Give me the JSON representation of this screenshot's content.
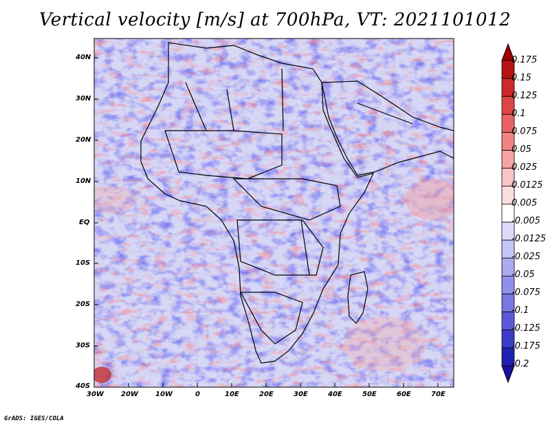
{
  "title": "Vertical velocity [m/s] at 700hPa, VT: 2021101012",
  "credit": "GrADS: IGES/COLA",
  "map": {
    "lon_range": [
      -30,
      75
    ],
    "lat_range": [
      -40,
      45
    ],
    "x_ticks": [
      "30W",
      "20W",
      "10W",
      "0",
      "10E",
      "20E",
      "30E",
      "40E",
      "50E",
      "60E",
      "70E"
    ],
    "y_ticks": [
      "40N",
      "30N",
      "20N",
      "10N",
      "EQ",
      "10S",
      "20S",
      "30S",
      "40S"
    ]
  },
  "colorbar": {
    "labels": [
      "0.175",
      "0.15",
      "0.125",
      "0.1",
      "0.075",
      "0.05",
      "0.025",
      "0.0125",
      "0.005",
      "-0.005",
      "-0.0125",
      "-0.025",
      "-0.05",
      "-0.075",
      "-0.1",
      "-0.125",
      "-0.175",
      "-0.2"
    ],
    "colors": [
      "#b41414",
      "#cc2a2a",
      "#dc4646",
      "#e86464",
      "#f08484",
      "#f6a4a4",
      "#fac4c4",
      "#fddede",
      "#ffffff",
      "#dcdcfa",
      "#c4c4f6",
      "#aaaaf0",
      "#9090ea",
      "#7878e2",
      "#5a5ad8",
      "#3c3cc8",
      "#2020b0"
    ]
  },
  "icons": {
    "map": "africa-map-icon"
  }
}
